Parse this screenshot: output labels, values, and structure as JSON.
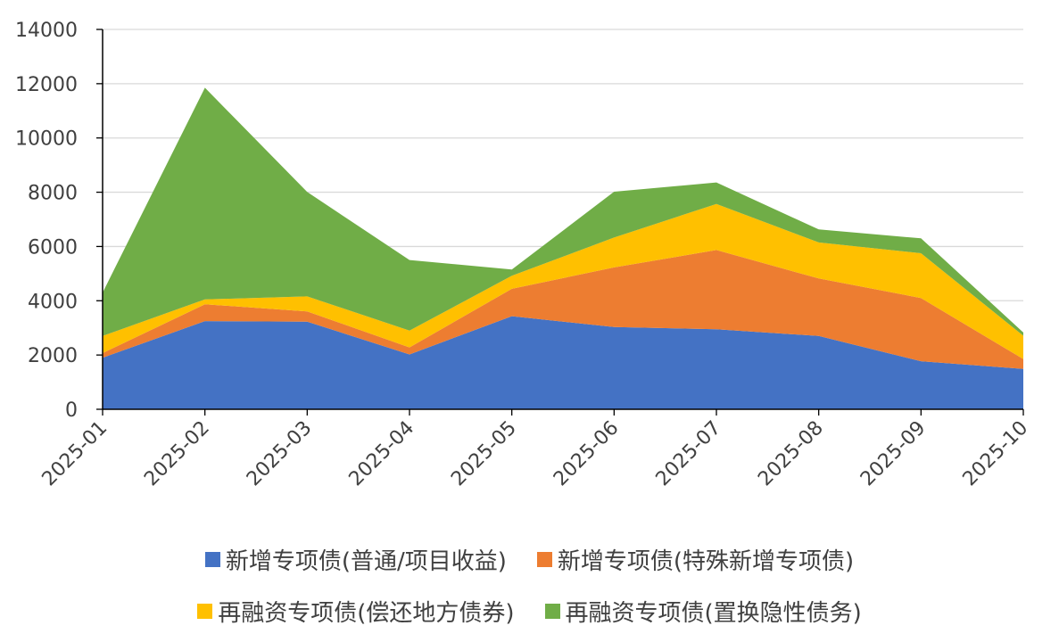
{
  "chart_data": {
    "type": "area",
    "stacked": true,
    "categories": [
      "2025-01",
      "2025-02",
      "2025-03",
      "2025-04",
      "2025-05",
      "2025-06",
      "2025-07",
      "2025-08",
      "2025-09",
      "2025-10"
    ],
    "series": [
      {
        "name": "新增专项债(普通/项目收益)",
        "color": "#4472C4",
        "values": [
          1900,
          3250,
          3230,
          2020,
          3430,
          3030,
          2950,
          2700,
          1770,
          1490
        ]
      },
      {
        "name": "新增专项债(特殊新增专项债)",
        "color": "#ED7D31",
        "values": [
          170,
          620,
          380,
          260,
          1010,
          2200,
          2920,
          2120,
          2330,
          360
        ]
      },
      {
        "name": "再融资专项债(偿还地方债券)",
        "color": "#FFC000",
        "values": [
          630,
          180,
          550,
          620,
          480,
          1100,
          1700,
          1330,
          1650,
          860
        ]
      },
      {
        "name": "再融资专项债(置换隐性债务)",
        "color": "#70AD47",
        "values": [
          1600,
          7800,
          3850,
          2600,
          230,
          1690,
          790,
          480,
          550,
          120
        ]
      }
    ],
    "yticks": [
      "0",
      "2000",
      "4000",
      "6000",
      "8000",
      "10000",
      "12000",
      "14000"
    ],
    "ylim": [
      0,
      14000
    ],
    "grid": true,
    "legend_position": "bottom"
  }
}
